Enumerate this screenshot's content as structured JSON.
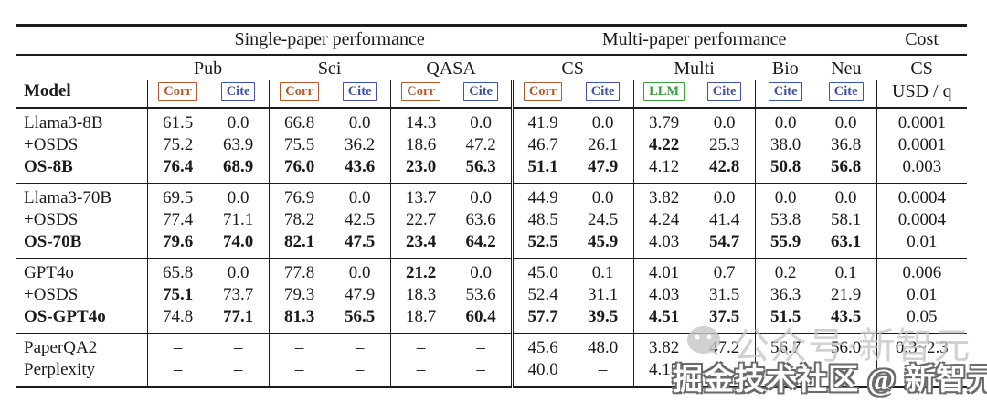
{
  "colors": {
    "corr_badge": "#b0592a",
    "cite_badge": "#3f51a0",
    "llm_badge": "#3aa03a",
    "rule": "#1c1c1c",
    "watermark_gray": "#c6c6c6"
  },
  "header": {
    "single": "Single-paper performance",
    "multi": "Multi-paper performance",
    "cost": "Cost",
    "model_label": "Model",
    "cols": [
      {
        "label": "Pub",
        "badges": [
          "Corr",
          "Cite"
        ]
      },
      {
        "label": "Sci",
        "badges": [
          "Corr",
          "Cite"
        ]
      },
      {
        "label": "QASA",
        "badges": [
          "Corr",
          "Cite"
        ]
      },
      {
        "label": "CS",
        "badges": [
          "Corr",
          "Cite"
        ]
      },
      {
        "label": "Multi",
        "badges": [
          "LLM",
          "Cite"
        ]
      },
      {
        "label": "Bio",
        "badges": [
          "Cite"
        ]
      },
      {
        "label": "Neu",
        "badges": [
          "Cite"
        ]
      },
      {
        "label": "CS",
        "sub": "USD / q"
      }
    ]
  },
  "groups": [
    {
      "rows": [
        {
          "name": "Llama3-8B",
          "bold_name": false,
          "cells": [
            "61.5",
            "0.0",
            "66.8",
            "0.0",
            "14.3",
            "0.0",
            "41.9",
            "0.0",
            "3.79",
            "0.0",
            "0.0",
            "0.0",
            "0.0001"
          ],
          "bold": []
        },
        {
          "name": "+OSDS",
          "bold_name": false,
          "cells": [
            "75.2",
            "63.9",
            "75.5",
            "36.2",
            "18.6",
            "47.2",
            "46.7",
            "26.1",
            "4.22",
            "25.3",
            "38.0",
            "36.8",
            "0.0001"
          ],
          "bold": [
            8
          ]
        },
        {
          "name": "OS-8B",
          "bold_name": true,
          "cells": [
            "76.4",
            "68.9",
            "76.0",
            "43.6",
            "23.0",
            "56.3",
            "51.1",
            "47.9",
            "4.12",
            "42.8",
            "50.8",
            "56.8",
            "0.003"
          ],
          "bold": [
            0,
            1,
            2,
            3,
            4,
            5,
            6,
            7,
            9,
            10,
            11
          ]
        }
      ]
    },
    {
      "rows": [
        {
          "name": "Llama3-70B",
          "bold_name": false,
          "cells": [
            "69.5",
            "0.0",
            "76.9",
            "0.0",
            "13.7",
            "0.0",
            "44.9",
            "0.0",
            "3.82",
            "0.0",
            "0.0",
            "0.0",
            "0.0004"
          ],
          "bold": []
        },
        {
          "name": "+OSDS",
          "bold_name": false,
          "cells": [
            "77.4",
            "71.1",
            "78.2",
            "42.5",
            "22.7",
            "63.6",
            "48.5",
            "24.5",
            "4.24",
            "41.4",
            "53.8",
            "58.1",
            "0.0004"
          ],
          "bold": []
        },
        {
          "name": "OS-70B",
          "bold_name": true,
          "cells": [
            "79.6",
            "74.0",
            "82.1",
            "47.5",
            "23.4",
            "64.2",
            "52.5",
            "45.9",
            "4.03",
            "54.7",
            "55.9",
            "63.1",
            "0.01"
          ],
          "bold": [
            0,
            1,
            2,
            3,
            4,
            5,
            6,
            7,
            9,
            10,
            11
          ]
        }
      ]
    },
    {
      "rows": [
        {
          "name": "GPT4o",
          "bold_name": false,
          "cells": [
            "65.8",
            "0.0",
            "77.8",
            "0.0",
            "21.2",
            "0.0",
            "45.0",
            "0.1",
            "4.01",
            "0.7",
            "0.2",
            "0.1",
            "0.006"
          ],
          "bold": [
            4
          ]
        },
        {
          "name": "+OSDS",
          "bold_name": false,
          "cells": [
            "75.1",
            "73.7",
            "79.3",
            "47.9",
            "18.3",
            "53.6",
            "52.4",
            "31.1",
            "4.03",
            "31.5",
            "36.3",
            "21.9",
            "0.01"
          ],
          "bold": [
            0
          ]
        },
        {
          "name": "OS-GPT4o",
          "bold_name": true,
          "cells": [
            "74.8",
            "77.1",
            "81.3",
            "56.5",
            "18.7",
            "60.4",
            "57.7",
            "39.5",
            "4.51",
            "37.5",
            "51.5",
            "43.5",
            "0.05"
          ],
          "bold": [
            1,
            2,
            3,
            5,
            6,
            7,
            8,
            9,
            10,
            11
          ]
        }
      ]
    },
    {
      "rows": [
        {
          "name": "PaperQA2",
          "bold_name": false,
          "cells": [
            "–",
            "–",
            "–",
            "–",
            "–",
            "–",
            "45.6",
            "48.0",
            "3.82",
            "47.2",
            "56.7",
            "56.0",
            "0.3~2.3"
          ],
          "bold": []
        },
        {
          "name": "Perplexity",
          "bold_name": false,
          "cells": [
            "–",
            "–",
            "–",
            "–",
            "–",
            "–",
            "40.0",
            "–",
            "4.15",
            "",
            "",
            "",
            ""
          ],
          "bold": []
        }
      ]
    }
  ],
  "watermarks": {
    "faint": "公众号·新智元",
    "outlined": "掘金技术社区 @ 新智元"
  }
}
